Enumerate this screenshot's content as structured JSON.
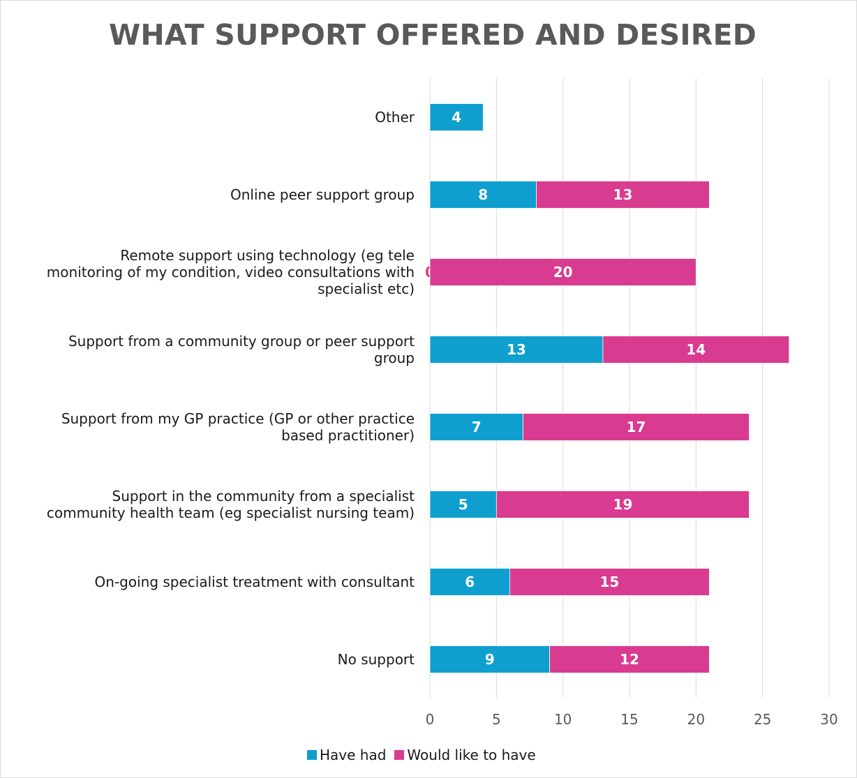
{
  "chart_data": {
    "type": "bar",
    "orientation": "horizontal",
    "stacked": true,
    "title": "WHAT SUPPORT OFFERED AND DESIRED",
    "categories": [
      "Other",
      "Online peer support group",
      "Remote support using technology (eg tele monitoring of my condition, video consultations with specialist etc)",
      "Support from a community group or peer support group",
      "Support from my GP practice (GP or other practice based practitioner)",
      "Support in the community from a specialist community health team (eg specialist nursing team)",
      "On-going specialist treatment with consultant",
      "No support"
    ],
    "category_lines": [
      [
        "Other"
      ],
      [
        "Online peer support group"
      ],
      [
        "Remote support using technology (eg tele",
        "monitoring of my condition, video consultations with",
        "specialist etc)"
      ],
      [
        "Support from a community group or peer support",
        "group"
      ],
      [
        "Support from my GP practice (GP or other practice",
        "based practitioner)"
      ],
      [
        "Support in the community from a specialist",
        "community health team (eg specialist nursing team)"
      ],
      [
        "On-going specialist treatment with consultant"
      ],
      [
        "No support"
      ]
    ],
    "series": [
      {
        "name": "Have had",
        "color": "#0e9fcf",
        "values": [
          4,
          8,
          0,
          13,
          7,
          5,
          6,
          9
        ]
      },
      {
        "name": "Would like to have",
        "color": "#d83b8f",
        "values": [
          null,
          13,
          20,
          14,
          17,
          19,
          15,
          12
        ]
      }
    ],
    "xlim": [
      0,
      30
    ],
    "xticks": [
      0,
      5,
      10,
      15,
      20,
      25,
      30
    ],
    "grid": true,
    "legend_position": "bottom"
  }
}
